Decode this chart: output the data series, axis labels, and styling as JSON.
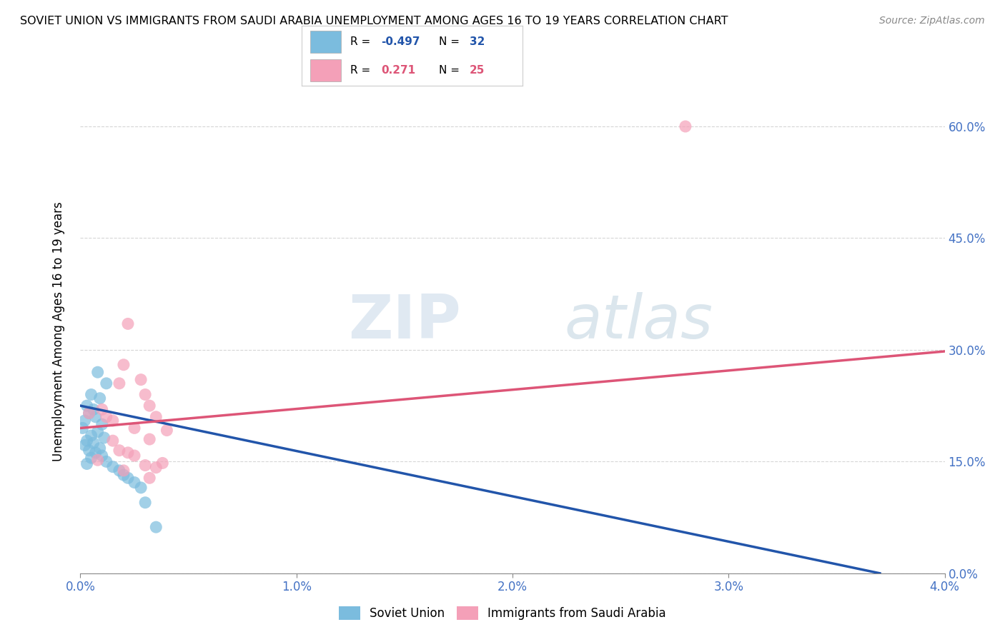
{
  "title": "SOVIET UNION VS IMMIGRANTS FROM SAUDI ARABIA UNEMPLOYMENT AMONG AGES 16 TO 19 YEARS CORRELATION CHART",
  "source": "Source: ZipAtlas.com",
  "ylabel": "Unemployment Among Ages 16 to 19 years",
  "xlim": [
    0.0,
    0.04
  ],
  "ylim": [
    0.0,
    0.65
  ],
  "xticks": [
    0.0,
    0.01,
    0.02,
    0.03,
    0.04
  ],
  "xtick_labels": [
    "0.0%",
    "1.0%",
    "2.0%",
    "3.0%",
    "4.0%"
  ],
  "ytick_labels_right": [
    "0.0%",
    "15.0%",
    "30.0%",
    "45.0%",
    "60.0%"
  ],
  "yticks_right": [
    0.0,
    0.15,
    0.3,
    0.45,
    0.6
  ],
  "legend_r_blue": "-0.497",
  "legend_n_blue": "32",
  "legend_r_pink": "0.271",
  "legend_n_pink": "25",
  "blue_color": "#7bbcde",
  "pink_color": "#f4a0b8",
  "blue_line_color": "#2255aa",
  "pink_line_color": "#dd5577",
  "watermark_zip": "ZIP",
  "watermark_atlas": "atlas",
  "blue_scatter": [
    [
      0.0008,
      0.27
    ],
    [
      0.0012,
      0.255
    ],
    [
      0.0005,
      0.24
    ],
    [
      0.0009,
      0.235
    ],
    [
      0.0003,
      0.225
    ],
    [
      0.0006,
      0.22
    ],
    [
      0.0004,
      0.215
    ],
    [
      0.0007,
      0.21
    ],
    [
      0.0002,
      0.205
    ],
    [
      0.001,
      0.2
    ],
    [
      0.0001,
      0.195
    ],
    [
      0.0008,
      0.19
    ],
    [
      0.0005,
      0.185
    ],
    [
      0.0011,
      0.182
    ],
    [
      0.0003,
      0.178
    ],
    [
      0.0006,
      0.175
    ],
    [
      0.0002,
      0.172
    ],
    [
      0.0009,
      0.168
    ],
    [
      0.0004,
      0.165
    ],
    [
      0.0007,
      0.162
    ],
    [
      0.001,
      0.158
    ],
    [
      0.0005,
      0.155
    ],
    [
      0.0012,
      0.15
    ],
    [
      0.0003,
      0.147
    ],
    [
      0.0015,
      0.143
    ],
    [
      0.0018,
      0.138
    ],
    [
      0.002,
      0.132
    ],
    [
      0.0022,
      0.128
    ],
    [
      0.0025,
      0.122
    ],
    [
      0.0028,
      0.115
    ],
    [
      0.003,
      0.095
    ],
    [
      0.0035,
      0.062
    ]
  ],
  "pink_scatter": [
    [
      0.0004,
      0.215
    ],
    [
      0.001,
      0.22
    ],
    [
      0.0012,
      0.21
    ],
    [
      0.0015,
      0.205
    ],
    [
      0.0018,
      0.255
    ],
    [
      0.002,
      0.28
    ],
    [
      0.0022,
      0.335
    ],
    [
      0.0025,
      0.195
    ],
    [
      0.0028,
      0.26
    ],
    [
      0.003,
      0.24
    ],
    [
      0.0032,
      0.225
    ],
    [
      0.0035,
      0.21
    ],
    [
      0.0015,
      0.178
    ],
    [
      0.0018,
      0.165
    ],
    [
      0.0022,
      0.162
    ],
    [
      0.0025,
      0.158
    ],
    [
      0.003,
      0.145
    ],
    [
      0.0035,
      0.142
    ],
    [
      0.0008,
      0.152
    ],
    [
      0.002,
      0.138
    ],
    [
      0.0032,
      0.128
    ],
    [
      0.0038,
      0.148
    ],
    [
      0.004,
      0.192
    ],
    [
      0.0032,
      0.18
    ],
    [
      0.028,
      0.6
    ]
  ],
  "blue_trend_x": [
    0.0,
    0.037
  ],
  "blue_trend_y": [
    0.225,
    0.0
  ],
  "pink_trend_x": [
    0.0,
    0.04
  ],
  "pink_trend_y": [
    0.195,
    0.298
  ]
}
